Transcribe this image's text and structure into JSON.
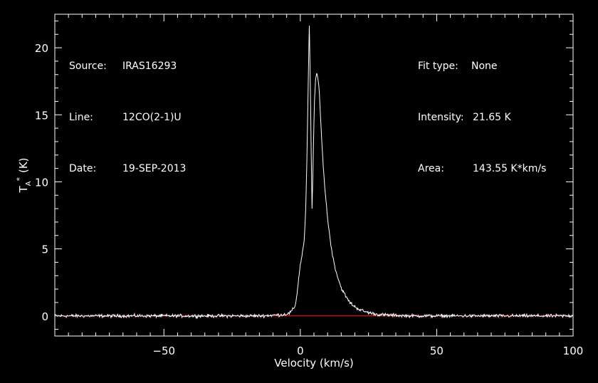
{
  "info_left": {
    "source_label": "Source:",
    "source_value": "IRAS16293",
    "line_label": "Line:",
    "line_value": "12CO(2-1)U",
    "date_label": "Date:",
    "date_value": "19-SEP-2013"
  },
  "info_right": {
    "fit_label": "Fit type:",
    "fit_value": "None",
    "intensity_label": "Intensity:",
    "intensity_value": "21.65 K",
    "area_label": "Area:",
    "area_value": "143.55 K*km/s"
  },
  "colors": {
    "background": "#000000",
    "foreground": "#ffffff",
    "baseline": "#ff2020"
  },
  "chart_data": {
    "type": "line",
    "xlabel": "Velocity (km/s)",
    "ylabel_main": "T",
    "ylabel_sub": "A",
    "ylabel_sup": "*",
    "ylabel_unit": "(K)",
    "xlim": [
      -90,
      100
    ],
    "ylim": [
      -1.5,
      22.5
    ],
    "x_ticks": [
      -50,
      0,
      50,
      100
    ],
    "x_tick_labels": [
      "−50",
      "0",
      "50",
      "100"
    ],
    "y_ticks": [
      0,
      5,
      10,
      15,
      20
    ],
    "y_tick_labels": [
      "0",
      "5",
      "10",
      "15",
      "20"
    ],
    "baseline": 0,
    "series": [
      {
        "points": [
          [
            -90,
            0.0
          ],
          [
            -70,
            0.0
          ],
          [
            -50,
            0.0
          ],
          [
            -30,
            0.0
          ],
          [
            -15,
            0.0
          ],
          [
            -10,
            0.05
          ],
          [
            -6,
            0.1
          ],
          [
            -4,
            0.2
          ],
          [
            -3,
            0.4
          ],
          [
            -2,
            0.7
          ],
          [
            -1.5,
            1.2
          ],
          [
            -1,
            2.0
          ],
          [
            -0.5,
            3.0
          ],
          [
            0,
            3.8
          ],
          [
            0.5,
            4.4
          ],
          [
            1,
            5.0
          ],
          [
            1.5,
            5.8
          ],
          [
            2,
            8.0
          ],
          [
            2.5,
            12.5
          ],
          [
            3,
            18.5
          ],
          [
            3.3,
            21.65
          ],
          [
            3.7,
            17.0
          ],
          [
            4,
            12.0
          ],
          [
            4.3,
            8.0
          ],
          [
            4.6,
            10.5
          ],
          [
            4.9,
            13.5
          ],
          [
            5.2,
            16.2
          ],
          [
            5.6,
            17.6
          ],
          [
            6.0,
            18.1
          ],
          [
            6.5,
            17.7
          ],
          [
            7,
            16.5
          ],
          [
            7.5,
            14.5
          ],
          [
            8,
            12.5
          ],
          [
            9,
            9.5
          ],
          [
            10,
            7.3
          ],
          [
            11,
            5.6
          ],
          [
            12,
            4.3
          ],
          [
            13,
            3.4
          ],
          [
            14,
            2.7
          ],
          [
            15,
            2.1
          ],
          [
            16,
            1.7
          ],
          [
            17,
            1.35
          ],
          [
            18,
            1.05
          ],
          [
            19,
            0.85
          ],
          [
            20,
            0.68
          ],
          [
            22,
            0.45
          ],
          [
            24,
            0.3
          ],
          [
            26,
            0.2
          ],
          [
            28,
            0.12
          ],
          [
            30,
            0.08
          ],
          [
            35,
            0.04
          ],
          [
            40,
            0.0
          ],
          [
            60,
            0.0
          ],
          [
            80,
            0.0
          ],
          [
            100,
            0.0
          ]
        ]
      }
    ]
  }
}
